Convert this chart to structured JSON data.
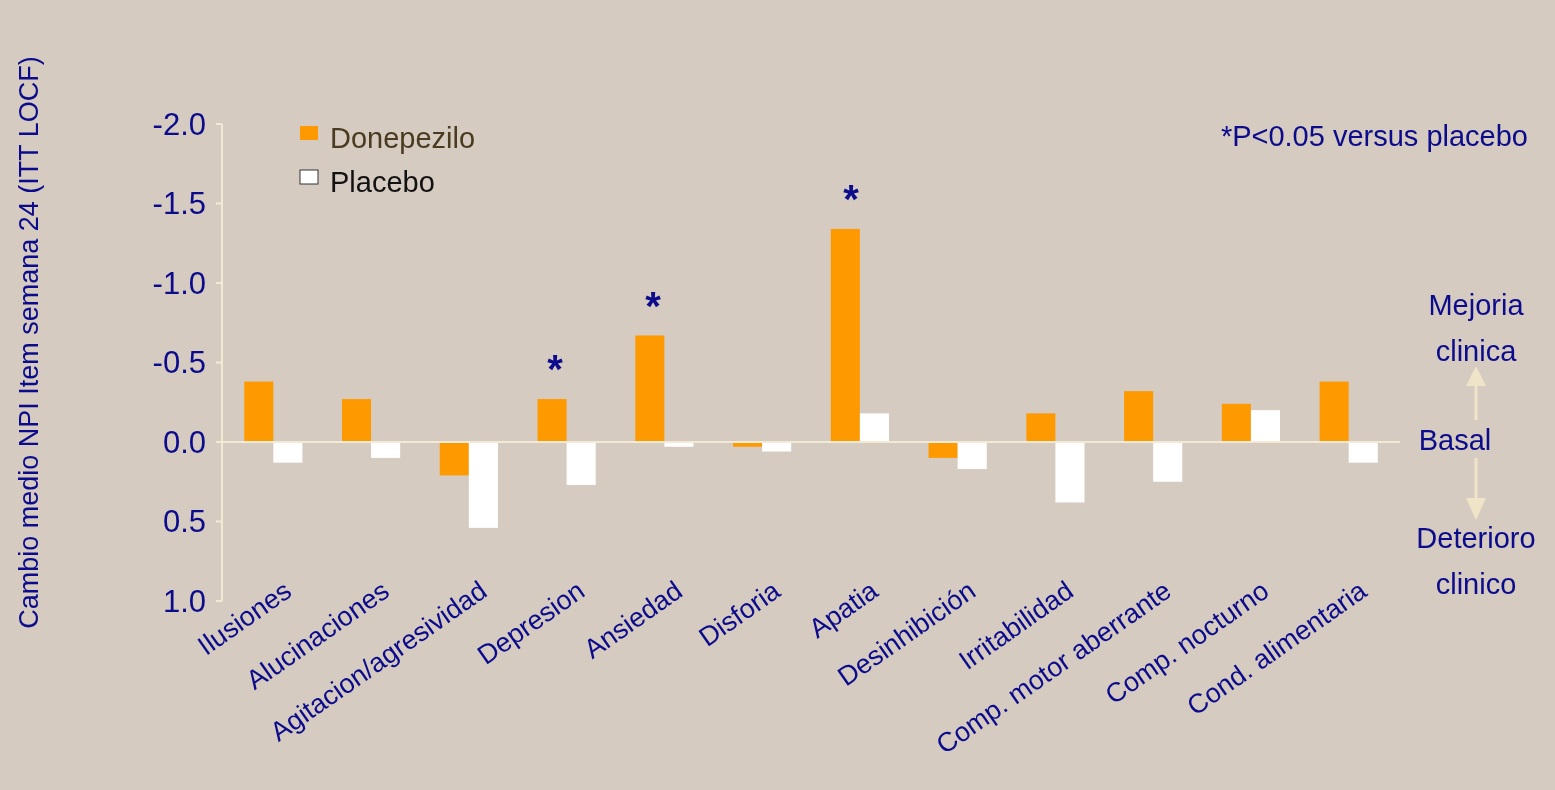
{
  "chart_data": {
    "type": "bar",
    "ylabel": "Cambio medio NPI Item semana 24 (ITT LOCF)",
    "categories": [
      "Ilusiones",
      "Alucinaciones",
      "Agitacion/agresividad",
      "Depresion",
      "Ansiedad",
      "Disforia",
      "Apatia",
      "Desinhibición",
      "Irritabilidad",
      "Comp. motor aberrante",
      "Comp. nocturno",
      "Cond. alimentaria"
    ],
    "series": [
      {
        "name": "Donepezilo",
        "color": "#ff9900",
        "values": [
          -0.38,
          -0.27,
          0.21,
          -0.27,
          -0.67,
          0.03,
          -1.34,
          0.1,
          -0.18,
          -0.32,
          -0.24,
          -0.38
        ]
      },
      {
        "name": "Placebo",
        "color": "#ffffff",
        "values": [
          0.13,
          0.1,
          0.54,
          0.27,
          0.03,
          0.06,
          -0.18,
          0.17,
          0.38,
          0.25,
          -0.2,
          0.13
        ]
      }
    ],
    "ylim": [
      1.0,
      -2.0
    ],
    "yticks": [
      {
        "value": -2,
        "label": "-2.0"
      },
      {
        "value": -1.5,
        "label": "-1.5"
      },
      {
        "value": -1,
        "label": "-1.0"
      },
      {
        "value": -0.5,
        "label": "-0.5"
      },
      {
        "value": 0,
        "label": "0.0"
      },
      {
        "value": 0.5,
        "label": "0.5"
      },
      {
        "value": 1,
        "label": "1.0"
      }
    ],
    "legend": "top left",
    "annotations": [
      "*P<0.05 versus placebo",
      "*",
      "*",
      "*",
      "Mejoria clinica",
      "Basal",
      "Deterioro clinico"
    ]
  }
}
